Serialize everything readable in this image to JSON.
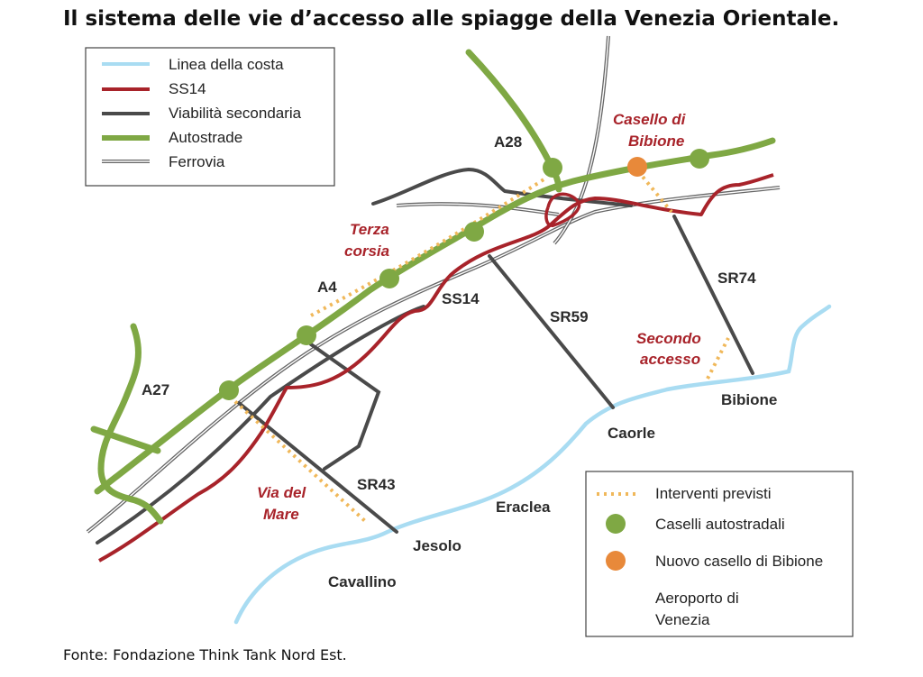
{
  "title": "Il sistema delle vie d’accesso alle spiagge della Venezia Orientale.",
  "source": "Fonte: Fondazione Think Tank Nord Est.",
  "colors": {
    "coast": "#a9dcf2",
    "ss14": "#a8232a",
    "secondary": "#4a4a4a",
    "highway": "#7fa844",
    "planned": "#f0b85a",
    "new_toll": "#e8893a",
    "label_red": "#a8232a"
  },
  "legend_top": {
    "items": [
      {
        "label": "Linea della costa",
        "symbol": "coast-line"
      },
      {
        "label": "SS14",
        "symbol": "ss14-line"
      },
      {
        "label": "Viabilità secondaria",
        "symbol": "secondary-line"
      },
      {
        "label": "Autostrade",
        "symbol": "highway-line"
      },
      {
        "label": "Ferrovia",
        "symbol": "railway-line"
      }
    ]
  },
  "legend_bottom": {
    "items": [
      {
        "label": "Interventi previsti",
        "symbol": "planned-dotted-line"
      },
      {
        "label": "Caselli autostradali",
        "symbol": "green-dot"
      },
      {
        "label": "Nuovo casello di Bibione",
        "symbol": "orange-dot"
      },
      {
        "label_line1": "Aeroporto di",
        "label_line2": "Venezia",
        "symbol": "airport"
      }
    ]
  },
  "map_labels": {
    "a28": "A28",
    "a4": "A4",
    "a27": "A27",
    "ss14": "SS14",
    "sr59": "SR59",
    "sr74": "SR74",
    "sr43": "SR43",
    "terza_corsia_1": "Terza",
    "terza_corsia_2": "corsia",
    "casello_1": "Casello di",
    "casello_2": "Bibione",
    "secondo_1": "Secondo",
    "secondo_2": "accesso",
    "via_mare_1": "Via del",
    "via_mare_2": "Mare",
    "bibione": "Bibione",
    "caorle": "Caorle",
    "eraclea": "Eraclea",
    "jesolo": "Jesolo",
    "cavallino": "Cavallino"
  }
}
